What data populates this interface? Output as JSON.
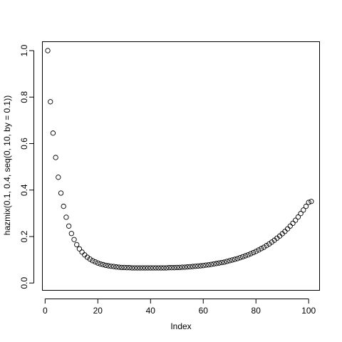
{
  "chart_data": {
    "type": "scatter",
    "title": "",
    "xlabel": "Index",
    "ylabel": "hazmix(0.1, 0.4, seq(0, 10, by = 0.1))",
    "xlim": [
      -0.9,
      104.0
    ],
    "ylim": [
      -0.03,
      1.04
    ],
    "x_ticks": [
      0,
      20,
      40,
      60,
      80,
      100
    ],
    "x_tick_labels": [
      "0",
      "20",
      "40",
      "60",
      "80",
      "100"
    ],
    "y_ticks": [
      0.0,
      0.2,
      0.4,
      0.6,
      0.8,
      1.0
    ],
    "y_tick_labels": [
      "0.0",
      "0.2",
      "0.4",
      "0.6",
      "0.8",
      "1.0"
    ],
    "grid": false,
    "marker": "open-circle",
    "series": [
      {
        "x": [
          1,
          2,
          3,
          4,
          5,
          6,
          7,
          8,
          9,
          10,
          11,
          12,
          13,
          14,
          15,
          16,
          17,
          18,
          19,
          20,
          21,
          22,
          23,
          24,
          25,
          26,
          27,
          28,
          29,
          30,
          31,
          32,
          33,
          34,
          35,
          36,
          37,
          38,
          39,
          40,
          41,
          42,
          43,
          44,
          45,
          46,
          47,
          48,
          49,
          50,
          51,
          52,
          53,
          54,
          55,
          56,
          57,
          58,
          59,
          60,
          61,
          62,
          63,
          64,
          65,
          66,
          67,
          68,
          69,
          70,
          71,
          72,
          73,
          74,
          75,
          76,
          77,
          78,
          79,
          80,
          81,
          82,
          83,
          84,
          85,
          86,
          87,
          88,
          89,
          90,
          91,
          92,
          93,
          94,
          95,
          96,
          97,
          98,
          99,
          100,
          101
        ],
        "y": [
          1.0,
          0.78,
          0.645,
          0.54,
          0.455,
          0.387,
          0.33,
          0.283,
          0.245,
          0.213,
          0.187,
          0.165,
          0.147,
          0.133,
          0.121,
          0.111,
          0.103,
          0.096,
          0.091,
          0.086,
          0.082,
          0.079,
          0.076,
          0.074,
          0.072,
          0.071,
          0.069,
          0.068,
          0.067,
          0.067,
          0.066,
          0.066,
          0.065,
          0.065,
          0.065,
          0.065,
          0.065,
          0.065,
          0.065,
          0.065,
          0.065,
          0.065,
          0.065,
          0.065,
          0.065,
          0.065,
          0.066,
          0.066,
          0.066,
          0.067,
          0.067,
          0.068,
          0.068,
          0.069,
          0.07,
          0.071,
          0.072,
          0.073,
          0.074,
          0.075,
          0.077,
          0.078,
          0.08,
          0.082,
          0.084,
          0.086,
          0.088,
          0.09,
          0.093,
          0.096,
          0.099,
          0.102,
          0.105,
          0.109,
          0.113,
          0.117,
          0.121,
          0.126,
          0.131,
          0.136,
          0.142,
          0.148,
          0.154,
          0.161,
          0.168,
          0.176,
          0.184,
          0.193,
          0.202,
          0.212,
          0.222,
          0.233,
          0.245,
          0.257,
          0.27,
          0.284,
          0.299,
          0.314,
          0.33,
          0.347,
          0.351
        ]
      }
    ]
  }
}
